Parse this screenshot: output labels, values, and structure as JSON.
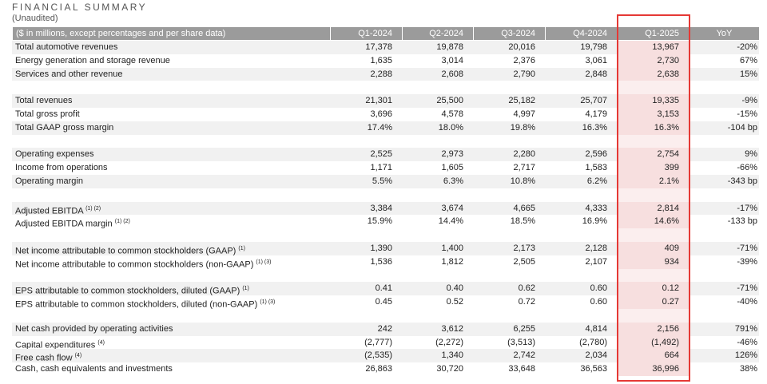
{
  "header": {
    "title": "FINANCIAL SUMMARY",
    "subtitle": "(Unaudited)"
  },
  "table": {
    "columns": [
      "($ in millions, except percentages and per share data)",
      "Q1-2024",
      "Q2-2024",
      "Q3-2024",
      "Q4-2024",
      "Q1-2025",
      "YoY"
    ],
    "groups": [
      {
        "rows": [
          {
            "label": "Total automotive revenues",
            "values": [
              "17,378",
              "19,878",
              "20,016",
              "19,798",
              "13,967",
              "-20%"
            ]
          },
          {
            "label": "Energy generation and storage revenue",
            "values": [
              "1,635",
              "3,014",
              "2,376",
              "3,061",
              "2,730",
              "67%"
            ]
          },
          {
            "label": "Services and other revenue",
            "values": [
              "2,288",
              "2,608",
              "2,790",
              "2,848",
              "2,638",
              "15%"
            ]
          }
        ]
      },
      {
        "rows": [
          {
            "label": "Total revenues",
            "values": [
              "21,301",
              "25,500",
              "25,182",
              "25,707",
              "19,335",
              "-9%"
            ]
          },
          {
            "label": "Total gross profit",
            "values": [
              "3,696",
              "4,578",
              "4,997",
              "4,179",
              "3,153",
              "-15%"
            ]
          },
          {
            "label": "Total GAAP gross margin",
            "values": [
              "17.4%",
              "18.0%",
              "19.8%",
              "16.3%",
              "16.3%",
              "-104 bp"
            ]
          }
        ]
      },
      {
        "rows": [
          {
            "label": "Operating expenses",
            "values": [
              "2,525",
              "2,973",
              "2,280",
              "2,596",
              "2,754",
              "9%"
            ]
          },
          {
            "label": "Income from operations",
            "values": [
              "1,171",
              "1,605",
              "2,717",
              "1,583",
              "399",
              "-66%"
            ]
          },
          {
            "label": "Operating margin",
            "values": [
              "5.5%",
              "6.3%",
              "10.8%",
              "6.2%",
              "2.1%",
              "-343 bp"
            ]
          }
        ]
      },
      {
        "rows": [
          {
            "label": "Adjusted EBITDA",
            "note": "(1) (2)",
            "values": [
              "3,384",
              "3,674",
              "4,665",
              "4,333",
              "2,814",
              "-17%"
            ]
          },
          {
            "label": "Adjusted EBITDA margin",
            "note": "(1) (2)",
            "values": [
              "15.9%",
              "14.4%",
              "18.5%",
              "16.9%",
              "14.6%",
              "-133 bp"
            ]
          }
        ]
      },
      {
        "rows": [
          {
            "label": "Net income attributable to common stockholders (GAAP)",
            "note": "(1)",
            "values": [
              "1,390",
              "1,400",
              "2,173",
              "2,128",
              "409",
              "-71%"
            ]
          },
          {
            "label": "Net income attributable to common stockholders (non-GAAP)",
            "note": "(1) (3)",
            "values": [
              "1,536",
              "1,812",
              "2,505",
              "2,107",
              "934",
              "-39%"
            ]
          }
        ]
      },
      {
        "rows": [
          {
            "label": "EPS attributable to common stockholders, diluted (GAAP)",
            "note": "(1)",
            "values": [
              "0.41",
              "0.40",
              "0.62",
              "0.60",
              "0.12",
              "-71%"
            ]
          },
          {
            "label": "EPS attributable to common stockholders, diluted (non-GAAP)",
            "note": "(1) (3)",
            "values": [
              "0.45",
              "0.52",
              "0.72",
              "0.60",
              "0.27",
              "-40%"
            ]
          }
        ]
      },
      {
        "rows": [
          {
            "label": "Net cash provided by operating activities",
            "values": [
              "242",
              "3,612",
              "6,255",
              "4,814",
              "2,156",
              "791%"
            ]
          },
          {
            "label": "Capital expenditures",
            "note": "(4)",
            "values": [
              "(2,777)",
              "(2,272)",
              "(3,513)",
              "(2,780)",
              "(1,492)",
              "-46%"
            ]
          },
          {
            "label": "Free cash flow",
            "note": "(4)",
            "values": [
              "(2,535)",
              "1,340",
              "2,742",
              "2,034",
              "664",
              "126%"
            ]
          },
          {
            "label": "Cash, cash equivalents and investments",
            "values": [
              "26,863",
              "30,720",
              "33,648",
              "36,563",
              "36,996",
              "38%"
            ]
          }
        ]
      }
    ]
  }
}
